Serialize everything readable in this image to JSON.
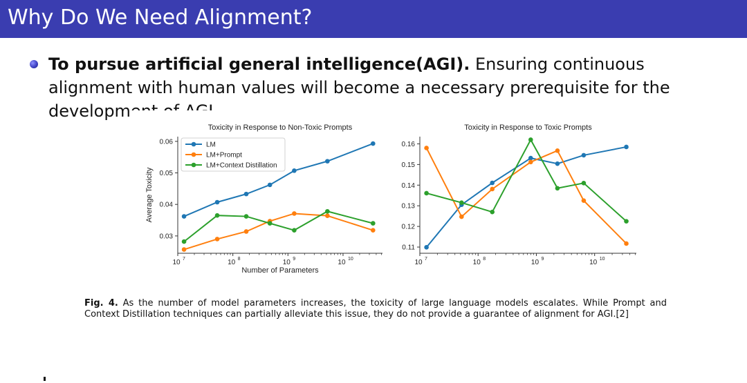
{
  "header": {
    "title": "Why Do We Need Alignment?"
  },
  "bullet": {
    "bold": "To pursue artificial general intelligence(AGI).",
    "text": " Ensuring continuous alignment with human values will become a necessary prerequisite for the development of AGI."
  },
  "caption": {
    "label": "Fig. 4.",
    "text": " As the number of model parameters increases, the toxicity of large language models escalates. While Prompt and Context Distillation techniques can partially alleviate this issue, they do not provide a guarantee of alignment for AGI.[2]"
  },
  "colors": {
    "LM": "#1f77b4",
    "LM+Prompt": "#ff7f0e",
    "LM+Context Distillation": "#2ca02c",
    "header": "#3a3db0"
  },
  "chart_data": [
    {
      "type": "line",
      "title": "Toxicity in Response to Non-Toxic Prompts",
      "xlabel": "Number of Parameters",
      "ylabel": "Average Toxicity",
      "xscale": "log",
      "xlim": [
        10000000,
        52000000000
      ],
      "ylim": [
        0.0245,
        0.0615
      ],
      "yticks": [
        0.03,
        0.04,
        0.05,
        0.06
      ],
      "ytick_labels": [
        "0.03",
        "0.04",
        "0.05",
        "0.06"
      ],
      "xticks": [
        10000000,
        100000000,
        1000000000,
        10000000000
      ],
      "xtick_labels": [
        [
          "10",
          "7"
        ],
        [
          "10",
          "8"
        ],
        [
          "10",
          "9"
        ],
        [
          "10",
          "10"
        ]
      ],
      "legend": "top-left",
      "x": [
        13000000,
        52000000,
        175000000,
        470000000,
        1300000000,
        5200000000,
        35000000000
      ],
      "series": [
        {
          "name": "LM",
          "values": [
            0.0362,
            0.0407,
            0.0433,
            0.0462,
            0.0507,
            0.0537,
            0.0593
          ]
        },
        {
          "name": "LM+Prompt",
          "values": [
            0.0257,
            0.029,
            0.0314,
            0.0347,
            0.0371,
            0.0364,
            0.0318
          ]
        },
        {
          "name": "LM+Context Distillation",
          "values": [
            0.0282,
            0.0365,
            0.0362,
            0.034,
            0.0318,
            0.0378,
            0.034
          ]
        }
      ]
    },
    {
      "type": "line",
      "title": "Toxicity in Response to Toxic Prompts",
      "xlabel": "",
      "ylabel": "",
      "xscale": "log",
      "xlim": [
        10000000,
        52000000000
      ],
      "ylim": [
        0.107,
        0.1635
      ],
      "yticks": [
        0.11,
        0.12,
        0.13,
        0.14,
        0.15,
        0.16
      ],
      "ytick_labels": [
        "0.11",
        "0.12",
        "0.13",
        "0.14",
        "0.15",
        "0.16"
      ],
      "xticks": [
        10000000,
        100000000,
        1000000000,
        10000000000
      ],
      "xtick_labels": [
        [
          "10",
          "7"
        ],
        [
          "10",
          "8"
        ],
        [
          "10",
          "9"
        ],
        [
          "10",
          "10"
        ]
      ],
      "legend": "none",
      "x": [
        13000000,
        52000000,
        175000000,
        800000000,
        2300000000,
        6500000000,
        35000000000
      ],
      "series": [
        {
          "name": "LM",
          "values": [
            0.1099,
            0.1305,
            0.1411,
            0.1531,
            0.1504,
            0.1545,
            0.1585
          ]
        },
        {
          "name": "LM+Prompt",
          "values": [
            0.158,
            0.1247,
            0.1381,
            0.1512,
            0.1567,
            0.1325,
            0.1117
          ]
        },
        {
          "name": "LM+Context Distillation",
          "values": [
            0.1361,
            0.1315,
            0.127,
            0.162,
            0.1385,
            0.141,
            0.1225
          ]
        }
      ]
    }
  ]
}
